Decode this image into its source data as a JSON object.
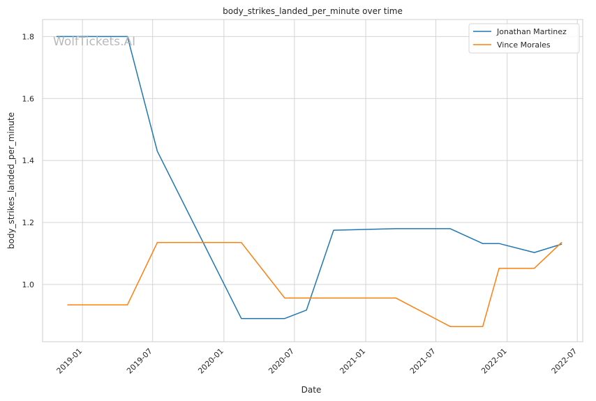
{
  "chart_data": {
    "type": "line",
    "title": "body_strikes_landed_per_minute over time",
    "xlabel": "Date",
    "ylabel": "body_strikes_landed_per_minute",
    "watermark": "WolfTickets.AI",
    "x_axis_type": "date",
    "xlim": [
      "2018-09-20",
      "2022-07-15"
    ],
    "ylim": [
      0.815,
      1.855
    ],
    "x_ticks": [
      "2019-01-01",
      "2019-07-01",
      "2020-01-01",
      "2020-07-01",
      "2021-01-01",
      "2021-07-01",
      "2022-01-01",
      "2022-07-01"
    ],
    "x_tick_labels": [
      "2019-01",
      "2019-07",
      "2020-01",
      "2020-07",
      "2021-01",
      "2021-07",
      "2022-01",
      "2022-07"
    ],
    "y_ticks": [
      1.0,
      1.2,
      1.4,
      1.6,
      1.8
    ],
    "y_tick_labels": [
      "1.0",
      "1.2",
      "1.4",
      "1.6",
      "1.8"
    ],
    "grid": true,
    "legend_position": "top-right",
    "series": [
      {
        "name": "Jonathan Martinez",
        "color": "#1f77b4",
        "x": [
          "2018-10-27",
          "2019-04-27",
          "2019-07-13",
          "2020-02-15",
          "2020-06-06",
          "2020-08-01",
          "2020-10-10",
          "2021-03-20",
          "2021-08-07",
          "2021-10-30",
          "2021-12-11",
          "2022-03-12",
          "2022-05-21"
        ],
        "y": [
          1.8,
          1.8,
          1.43,
          0.89,
          0.89,
          0.917,
          1.175,
          1.18,
          1.18,
          1.132,
          1.132,
          1.103,
          1.13
        ]
      },
      {
        "name": "Vince Morales",
        "color": "#ff7f0e",
        "x": [
          "2018-11-24",
          "2019-04-27",
          "2019-07-13",
          "2020-02-15",
          "2020-06-06",
          "2020-08-01",
          "2020-10-10",
          "2021-03-20",
          "2021-08-07",
          "2021-10-30",
          "2021-12-11",
          "2022-03-12",
          "2022-05-21"
        ],
        "y": [
          0.934,
          0.934,
          1.135,
          1.135,
          0.956,
          0.956,
          0.956,
          0.956,
          0.864,
          0.864,
          1.052,
          1.052,
          1.135
        ]
      }
    ]
  }
}
